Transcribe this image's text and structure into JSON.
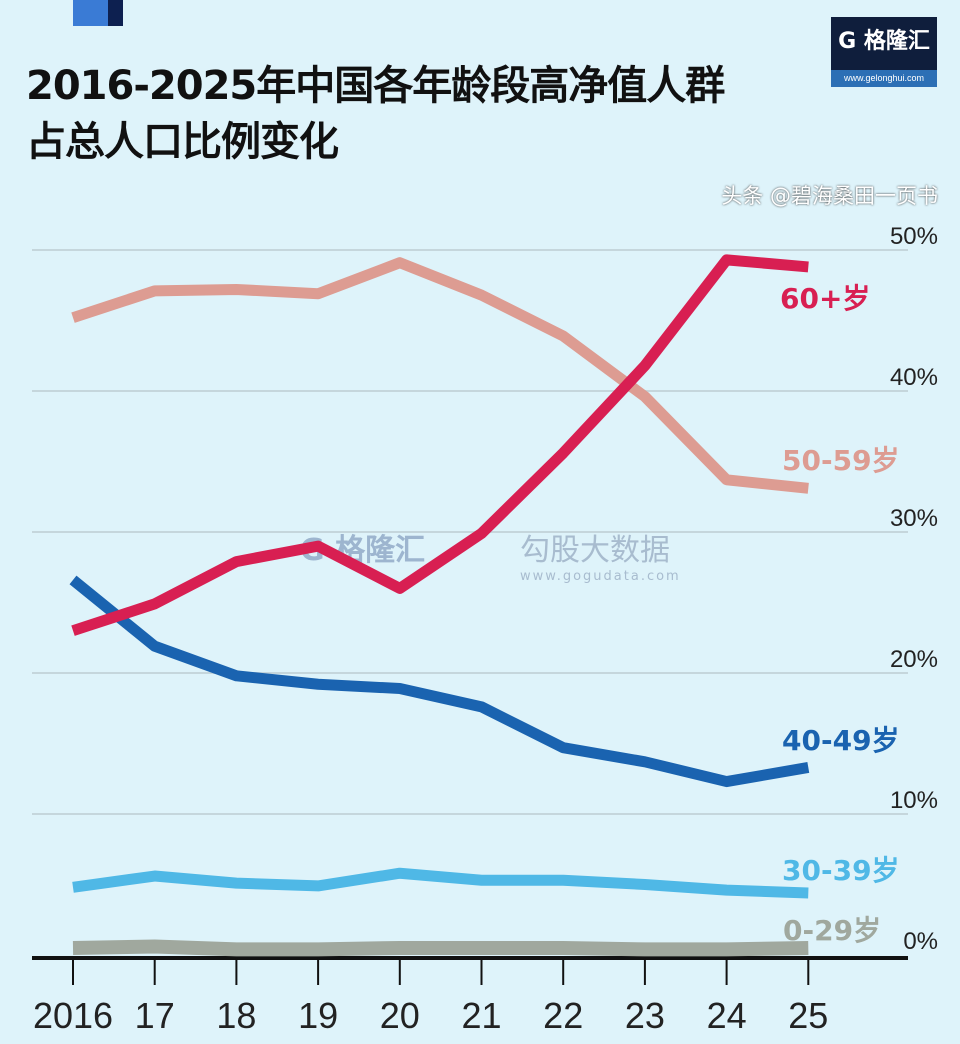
{
  "title_line1": "2016-2025年中国各年龄段高净值人群",
  "title_line2": "占总人口比例变化",
  "logo": {
    "name": "G 格隆汇",
    "url": "www.gelonghui.com"
  },
  "watermark": {
    "left": "G 格隆汇",
    "right": "勾股大数据",
    "right_url": "www.gogudata.com"
  },
  "credit": "头条 @碧海桑田一页书",
  "chart_data": {
    "type": "line",
    "title": "2016-2025年中国各年龄段高净值人群占总人口比例变化",
    "categories": [
      "2016",
      "17",
      "18",
      "19",
      "20",
      "21",
      "22",
      "23",
      "24",
      "25"
    ],
    "ylim": [
      0,
      50
    ],
    "yticks": [
      "0%",
      "10%",
      "20%",
      "30%",
      "40%",
      "50%"
    ],
    "grid": true,
    "series": [
      {
        "name": "60+岁",
        "color": "#d81f52",
        "values": [
          23.0,
          24.9,
          27.9,
          29.0,
          26.0,
          29.9,
          35.6,
          41.8,
          49.3,
          48.8
        ]
      },
      {
        "name": "50-59岁",
        "color": "#dd9c92",
        "values": [
          45.2,
          47.1,
          47.2,
          46.9,
          49.1,
          46.8,
          43.9,
          39.6,
          33.7,
          33.1
        ]
      },
      {
        "name": "40-49岁",
        "color": "#1a63b0",
        "values": [
          26.6,
          21.9,
          19.8,
          19.2,
          18.9,
          17.6,
          14.7,
          13.7,
          12.3,
          13.3
        ]
      },
      {
        "name": "30-39岁",
        "color": "#4fb8e6",
        "values": [
          4.8,
          5.6,
          5.1,
          4.9,
          5.8,
          5.3,
          5.3,
          5.0,
          4.6,
          4.4
        ]
      },
      {
        "name": "0-29岁",
        "color": "#a0a89e",
        "values": [
          0.5,
          0.6,
          0.4,
          0.4,
          0.5,
          0.5,
          0.5,
          0.4,
          0.4,
          0.5
        ]
      }
    ]
  }
}
